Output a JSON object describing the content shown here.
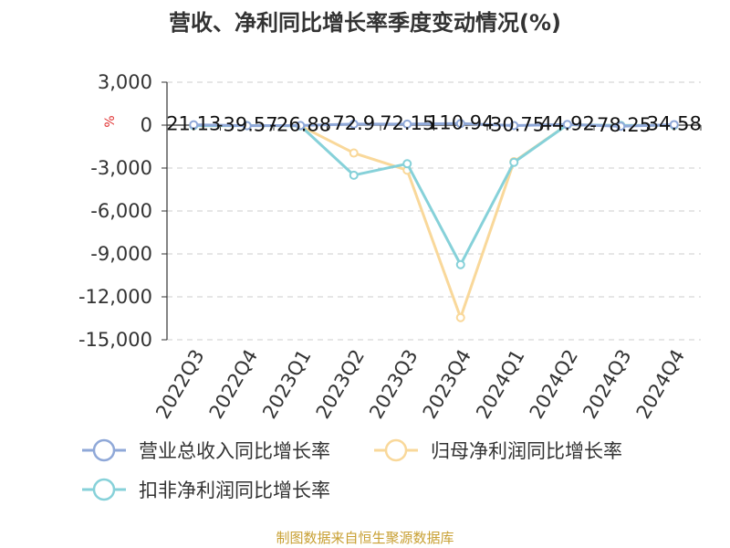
{
  "chart_data": {
    "type": "line",
    "title": "营收、净利同比增长率季度变动情况(%)",
    "unit_label": "%",
    "categories": [
      "2022Q3",
      "2022Q4",
      "2023Q1",
      "2023Q2",
      "2023Q3",
      "2023Q4",
      "2024Q1",
      "2024Q2",
      "2024Q3",
      "2024Q4"
    ],
    "ylim": [
      -15000,
      3000
    ],
    "yticks": [
      3000,
      0,
      -3000,
      -6000,
      -9000,
      -12000,
      -15000
    ],
    "ytick_labels": [
      "3,000",
      "0",
      "-3,000",
      "-6,000",
      "-9,000",
      "-12,000",
      "-15,000"
    ],
    "grid": true,
    "legend_position": "bottom",
    "series": [
      {
        "name": "营业总收入同比增长率",
        "color": "#8fa8d8",
        "values": [
          21.13,
          -39.57,
          -26.88,
          72.9,
          72.15,
          110.94,
          -30.75,
          44.92,
          -78.25,
          34.58
        ],
        "labels": [
          "21.13",
          "-39.57",
          "-26.88",
          "72.9",
          "72.15",
          "110.94",
          "-30.75",
          "44.92",
          "-78.25",
          "34.58"
        ]
      },
      {
        "name": "归母净利润同比增长率",
        "color": "#f9d89a",
        "values": [
          -40,
          -35,
          -50,
          -1950,
          -3150,
          -13450,
          -2550,
          30,
          -20,
          -10
        ]
      },
      {
        "name": "扣非净利润同比增长率",
        "color": "#86d1d9",
        "values": [
          -40,
          -35,
          -50,
          -3500,
          -2700,
          -9750,
          -2600,
          30,
          -20,
          -10
        ]
      }
    ],
    "source": "制图数据来自恒生聚源数据库"
  }
}
